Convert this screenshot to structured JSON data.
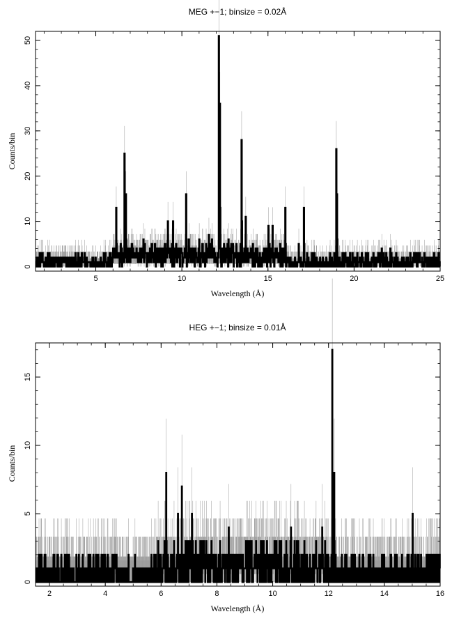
{
  "chart_data": [
    {
      "type": "line",
      "title": "MEG +−1; binsize = 0.02Å",
      "xlabel": "Wavelength (Å)",
      "ylabel": "Counts/bin",
      "xlim": [
        1.5,
        25
      ],
      "ylim": [
        -1,
        52
      ],
      "xticks": [
        5,
        10,
        15,
        20,
        25
      ],
      "yticks": [
        0,
        10,
        20,
        30,
        40,
        50
      ],
      "grid": false,
      "background_level": 1.2,
      "baseline_noise_max": 3,
      "peaks": [
        {
          "x": 6.18,
          "y": 13
        },
        {
          "x": 6.65,
          "y": 25
        },
        {
          "x": 6.74,
          "y": 16
        },
        {
          "x": 7.1,
          "y": 5
        },
        {
          "x": 7.76,
          "y": 6
        },
        {
          "x": 8.42,
          "y": 5
        },
        {
          "x": 9.17,
          "y": 10
        },
        {
          "x": 9.48,
          "y": 10
        },
        {
          "x": 10.24,
          "y": 16
        },
        {
          "x": 11.0,
          "y": 6
        },
        {
          "x": 11.55,
          "y": 7
        },
        {
          "x": 12.13,
          "y": 51
        },
        {
          "x": 12.2,
          "y": 36
        },
        {
          "x": 12.85,
          "y": 5
        },
        {
          "x": 13.45,
          "y": 28
        },
        {
          "x": 13.7,
          "y": 11
        },
        {
          "x": 15.01,
          "y": 9
        },
        {
          "x": 15.26,
          "y": 9
        },
        {
          "x": 16.0,
          "y": 13
        },
        {
          "x": 16.78,
          "y": 5
        },
        {
          "x": 17.07,
          "y": 13
        },
        {
          "x": 18.97,
          "y": 26
        },
        {
          "x": 19.0,
          "y": 16
        },
        {
          "x": 21.6,
          "y": 4
        },
        {
          "x": 22.1,
          "y": 4
        },
        {
          "x": 23.8,
          "y": 3
        }
      ]
    },
    {
      "type": "line",
      "title": "HEG +−1; binsize = 0.01Å",
      "xlabel": "Wavelength (Å)",
      "ylabel": "Counts/bin",
      "xlim": [
        1.5,
        16
      ],
      "ylim": [
        -0.3,
        17.5
      ],
      "xticks": [
        2,
        4,
        6,
        8,
        10,
        12,
        14,
        16
      ],
      "yticks": [
        0,
        5,
        10,
        15
      ],
      "grid": false,
      "background_level": 1.3,
      "baseline_noise_max": 2,
      "peaks": [
        {
          "x": 6.18,
          "y": 8
        },
        {
          "x": 6.6,
          "y": 5
        },
        {
          "x": 6.74,
          "y": 7
        },
        {
          "x": 7.1,
          "y": 5
        },
        {
          "x": 7.4,
          "y": 3
        },
        {
          "x": 7.8,
          "y": 3
        },
        {
          "x": 8.42,
          "y": 4
        },
        {
          "x": 9.17,
          "y": 3
        },
        {
          "x": 9.4,
          "y": 3
        },
        {
          "x": 10.24,
          "y": 3
        },
        {
          "x": 10.65,
          "y": 4
        },
        {
          "x": 11.55,
          "y": 3
        },
        {
          "x": 11.77,
          "y": 4
        },
        {
          "x": 12.13,
          "y": 17
        },
        {
          "x": 12.2,
          "y": 8
        },
        {
          "x": 15.01,
          "y": 5
        }
      ]
    }
  ]
}
